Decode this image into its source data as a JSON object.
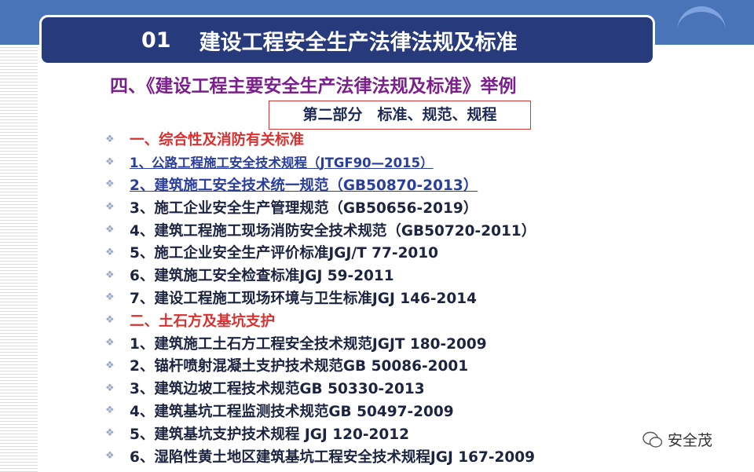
{
  "header": {
    "number": "01",
    "title": "建设工程安全生产法律法规及标准"
  },
  "subtitle": "四、《建设工程主要安全生产法律法规及标准》举例",
  "section_box": "第二部分　标准、规范、规程",
  "items": [
    {
      "text": "一、综合性及消防有关标准",
      "style": "red"
    },
    {
      "text": "1、公路工程施工安全技术规程（JTGF90—2015）",
      "style": "link small"
    },
    {
      "text": "2、建筑施工安全技术统一规范（GB50870-2013）",
      "style": "link"
    },
    {
      "text": "3、施工企业安全生产管理规范（GB50656-2019）",
      "style": ""
    },
    {
      "text": "4、建筑工程施工现场消防安全技术规范（GB50720-2011）",
      "style": ""
    },
    {
      "text": "5、施工企业安全生产评价标准JGJ/T 77-2010",
      "style": ""
    },
    {
      "text": "6、建筑施工安全检查标准JGJ 59-2011",
      "style": ""
    },
    {
      "text": "7、建设工程施工现场环境与卫生标准JGJ 146-2014",
      "style": ""
    },
    {
      "text": "二、土石方及基坑支护",
      "style": "red"
    },
    {
      "text": "1、建筑施工土石方工程安全技术规范JGJT 180-2009",
      "style": ""
    },
    {
      "text": "2、锚杆喷射混凝土支护技术规范GB 50086-2001",
      "style": ""
    },
    {
      "text": "3、建筑边坡工程技术规范GB 50330-2013",
      "style": ""
    },
    {
      "text": "4、建筑基坑工程监测技术规范GB 50497-2009",
      "style": ""
    },
    {
      "text": "5、建筑基坑支护技术规程 JGJ 120-2012",
      "style": ""
    },
    {
      "text": "6、湿陷性黄土地区建筑基坑工程安全技术规程JGJ 167-2009",
      "style": ""
    }
  ],
  "watermark": "安全茂",
  "colors": {
    "band": "#4a74b8",
    "title_bg": "#263a7c",
    "subtitle": "#7b1f8c",
    "red": "#d93030",
    "link": "#2a3e9e"
  }
}
